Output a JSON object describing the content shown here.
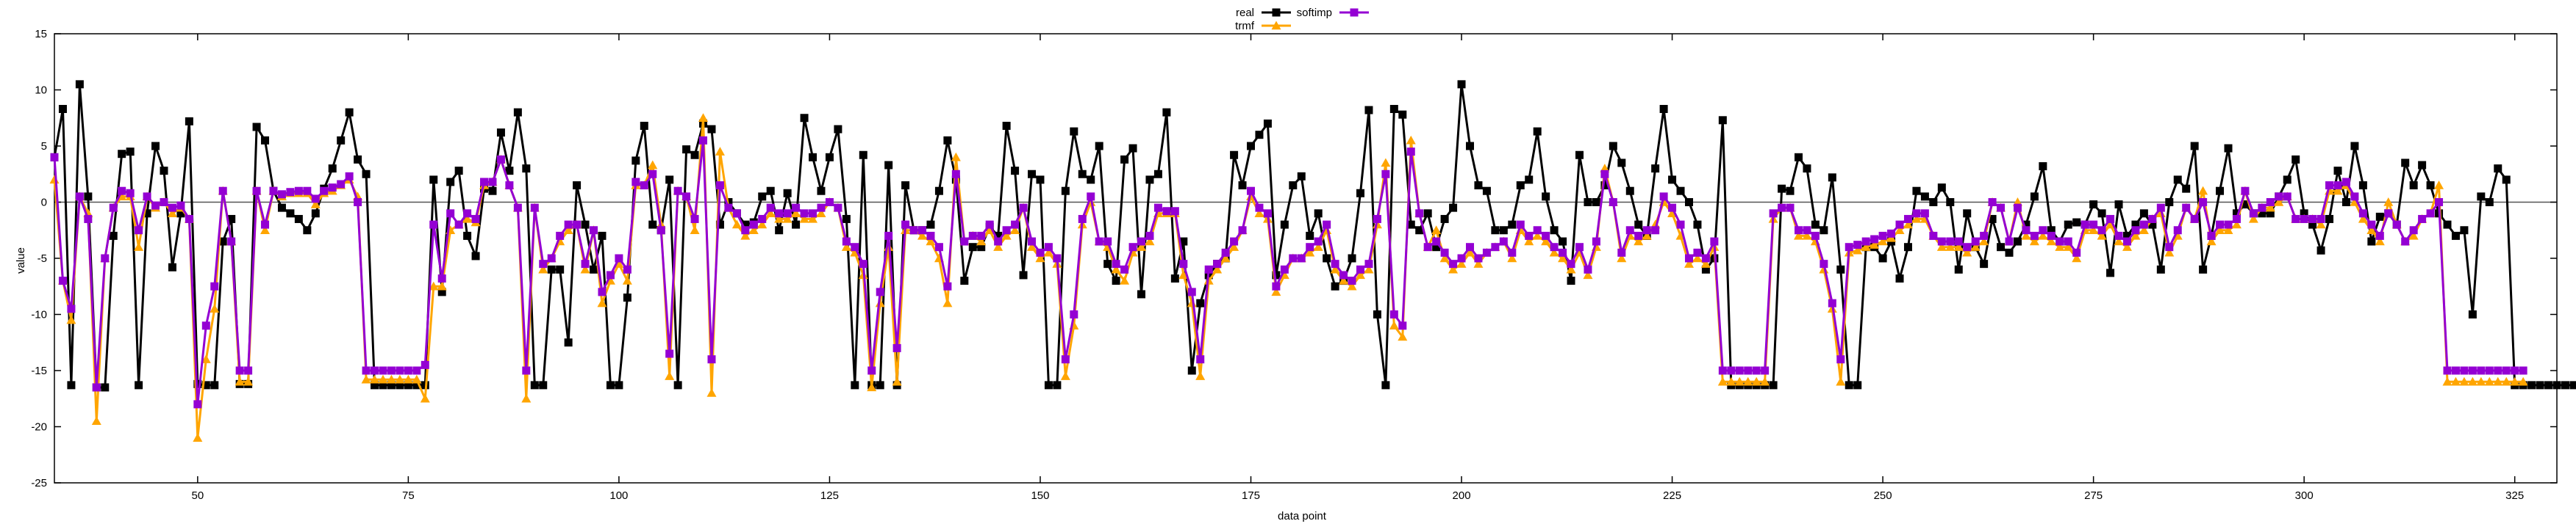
{
  "chart_data": {
    "type": "line",
    "xlabel": "data point",
    "ylabel": "value",
    "xlim": [
      33,
      330
    ],
    "ylim": [
      -25,
      15
    ],
    "xticks": [
      50,
      75,
      100,
      125,
      150,
      175,
      200,
      225,
      250,
      275,
      300,
      325
    ],
    "yticks": [
      -25,
      -20,
      -15,
      -10,
      -5,
      0,
      5,
      10,
      15
    ],
    "grid": false,
    "zero_line": true,
    "legend_position": "top-center",
    "x_start": 33,
    "series": [
      {
        "name": "real",
        "color": "#000000",
        "marker": "square",
        "values": [
          4.0,
          8.3,
          -16.3,
          10.5,
          0.5,
          -16.5,
          -16.5,
          -3.0,
          4.3,
          4.5,
          -16.3,
          -1.0,
          5.0,
          2.8,
          -5.8,
          -1.0,
          7.2,
          -16.2,
          -16.3,
          -16.3,
          -3.5,
          -1.5,
          -16.2,
          -16.2,
          6.7,
          5.5,
          1.0,
          -0.5,
          -1.0,
          -1.5,
          -2.5,
          -1.0,
          1.2,
          3.0,
          5.5,
          8.0,
          3.8,
          2.5,
          -16.3,
          -16.3,
          -16.3,
          -16.3,
          -16.3,
          -16.3,
          -16.3,
          2.0,
          -8.0,
          1.8,
          2.8,
          -3.0,
          -4.8,
          1.2,
          1.0,
          6.2,
          2.8,
          8.0,
          3.0,
          -16.3,
          -16.3,
          -6.0,
          -6.0,
          -12.5,
          1.5,
          -2.0,
          -6.0,
          -3.0,
          -16.3,
          -16.3,
          -8.5,
          3.7,
          6.8,
          -2.0,
          -2.5,
          2.0,
          -16.3,
          4.7,
          4.2,
          7.0,
          6.5,
          -2.0,
          0.0,
          -1.0,
          -2.0,
          -1.8,
          0.5,
          1.0,
          -2.5,
          0.8,
          -2.0,
          7.5,
          4.0,
          1.0,
          4.0,
          6.5,
          -1.5,
          -16.3,
          4.2,
          -16.3,
          -16.3,
          3.3,
          -16.3,
          1.5,
          -2.5,
          -2.5,
          -2.0,
          1.0,
          5.5,
          2.0,
          -7.0,
          -4.0,
          -4.0,
          -2.2,
          -3.0,
          6.8,
          2.8,
          -6.5,
          2.5,
          2.0,
          -16.3,
          -16.3,
          1.0,
          6.3,
          2.5,
          2.0,
          5.0,
          -5.5,
          -7.0,
          3.8,
          4.8,
          -8.2,
          2.0,
          2.5,
          8.0,
          -6.8,
          -3.5,
          -15.0,
          -9.0,
          -6.5,
          -5.5,
          -5.0,
          4.2,
          1.5,
          5.0,
          6.0,
          7.0,
          -6.5,
          -2.0,
          1.5,
          2.3,
          -3.0,
          -1.0,
          -5.0,
          -7.5,
          -7.0,
          -5.0,
          0.8,
          8.2,
          -10.0,
          -16.3,
          8.3,
          7.8,
          -2.0,
          -2.5,
          -1.0,
          -4.0,
          -1.5,
          -0.5,
          10.5,
          5.0,
          1.5,
          1.0,
          -2.5,
          -2.5,
          -2.0,
          1.5,
          2.0,
          6.3,
          0.5,
          -2.5,
          -3.5,
          -7.0,
          4.2,
          0.0,
          0.0,
          1.5,
          5.0,
          3.5,
          1.0,
          -2.0,
          -3.0,
          3.0,
          8.3,
          2.0,
          1.0,
          0.0,
          -2.0,
          -6.0,
          -5.0,
          7.3,
          -16.3,
          -16.3,
          -16.3,
          -16.3,
          -16.3,
          -16.3,
          1.2,
          1.0,
          4.0,
          3.0,
          -2.0,
          -2.5,
          2.2,
          -6.0,
          -16.3,
          -16.3,
          -4.0,
          -4.0,
          -5.0,
          -3.5,
          -6.8,
          -4.0,
          1.0,
          0.5,
          0.0,
          1.3,
          0.0,
          -6.0,
          -1.0,
          -4.0,
          -5.5,
          -1.5,
          -4.0,
          -4.5,
          -3.5,
          -2.0,
          0.5,
          3.2,
          -2.5,
          -3.5,
          -2.0,
          -1.8,
          -2.0,
          -0.2,
          -1.0,
          -6.3,
          -0.2,
          -3.0,
          -2.0,
          -1.0,
          -2.0,
          -6.0,
          0.0,
          2.0,
          1.2,
          5.0,
          -6.0,
          -3.0,
          1.0,
          4.8,
          -1.0,
          -0.2,
          -1.0,
          -1.0,
          -1.0,
          0.5,
          2.0,
          3.8,
          -1.0,
          -2.0,
          -4.3,
          -1.5,
          2.8,
          0.0,
          5.0,
          1.5,
          -3.5,
          -1.3,
          -1.0,
          -2.0,
          3.5,
          1.5,
          3.3,
          1.5,
          -1.0,
          -2.0,
          -3.0,
          -2.5,
          -10.0,
          0.5,
          0.0,
          3.0,
          2.0,
          -16.3,
          -16.3,
          -16.3,
          -16.3,
          -16.3,
          -16.3,
          -16.3,
          -16.3,
          -16.3,
          -16.3
        ]
      },
      {
        "name": "trmf",
        "color": "#ffa500",
        "marker": "triangle",
        "values": [
          2.0,
          -7.0,
          -10.5,
          0.5,
          -1.0,
          -19.5,
          -5.0,
          -0.5,
          0.5,
          0.5,
          -4.0,
          0.5,
          -0.5,
          0.0,
          -1.0,
          -0.5,
          -1.5,
          -21.0,
          -14.0,
          -9.5,
          1.0,
          -3.5,
          -16.0,
          -16.0,
          1.0,
          -2.5,
          1.0,
          0.5,
          0.8,
          0.8,
          0.8,
          -0.2,
          0.8,
          1.0,
          1.5,
          2.0,
          0.5,
          -15.8,
          -15.8,
          -15.8,
          -15.8,
          -15.8,
          -15.8,
          -15.8,
          -17.5,
          -7.5,
          -7.5,
          -2.5,
          -2.0,
          -1.5,
          -1.8,
          1.5,
          1.8,
          3.8,
          1.5,
          -0.5,
          -17.5,
          -0.5,
          -6.0,
          -5.0,
          -3.5,
          -2.5,
          -2.0,
          -6.0,
          -2.5,
          -9.0,
          -7.0,
          -5.5,
          -7.0,
          1.5,
          1.5,
          3.3,
          -2.0,
          -15.5,
          1.0,
          0.5,
          -2.5,
          7.5,
          -17.0,
          4.5,
          -0.5,
          -2.0,
          -3.0,
          -2.5,
          -2.0,
          -1.0,
          -1.5,
          -1.5,
          -1.0,
          -1.5,
          -1.5,
          -1.0,
          0.0,
          -0.5,
          -4.0,
          -4.5,
          -6.5,
          -16.5,
          -9.0,
          -4.0,
          -16.0,
          -2.5,
          -2.5,
          -3.0,
          -3.5,
          -5.0,
          -9.0,
          4.0,
          -3.5,
          -3.0,
          -3.5,
          -2.5,
          -4.0,
          -3.0,
          -2.5,
          -0.5,
          -4.0,
          -5.0,
          -4.5,
          -5.5,
          -15.5,
          -11.0,
          -2.0,
          0.0,
          -3.5,
          -4.0,
          -6.0,
          -7.0,
          -4.5,
          -4.0,
          -3.5,
          -1.0,
          -1.0,
          -1.0,
          -6.5,
          -9.0,
          -15.5,
          -7.0,
          -6.0,
          -5.0,
          -4.0,
          -2.5,
          0.5,
          -1.0,
          -1.5,
          -8.0,
          -6.5,
          -5.0,
          -5.0,
          -4.5,
          -4.0,
          -2.5,
          -6.0,
          -7.0,
          -7.5,
          -6.5,
          -6.0,
          -2.0,
          3.5,
          -11.0,
          -12.0,
          5.5,
          -1.0,
          -4.0,
          -2.5,
          -5.0,
          -6.0,
          -5.5,
          -4.5,
          -5.5,
          -4.5,
          -4.0,
          -3.5,
          -5.0,
          -2.5,
          -3.5,
          -3.0,
          -3.5,
          -4.5,
          -5.0,
          -6.0,
          -4.5,
          -6.5,
          -4.0,
          3.0,
          0.0,
          -5.0,
          -3.0,
          -3.5,
          -3.0,
          -2.0,
          0.0,
          -1.0,
          -3.0,
          -5.5,
          -5.0,
          -5.5,
          -4.0,
          -16.0,
          -16.0,
          -16.0,
          -16.0,
          -16.0,
          -16.0,
          -1.5,
          -0.5,
          -0.5,
          -3.0,
          -3.0,
          -3.5,
          -6.0,
          -9.5,
          -16.0,
          -4.5,
          -4.3,
          -4.0,
          -3.8,
          -3.5,
          -3.2,
          -2.5,
          -2.0,
          -1.5,
          -1.5,
          -3.0,
          -4.0,
          -4.0,
          -4.0,
          -4.5,
          -4.0,
          -3.5,
          0.0,
          -0.5,
          -3.5,
          0.0,
          -3.0,
          -3.5,
          -3.0,
          -3.5,
          -4.0,
          -4.0,
          -5.0,
          -2.5,
          -2.5,
          -3.0,
          -2.0,
          -3.5,
          -4.0,
          -3.0,
          -2.5,
          -1.5,
          -1.0,
          -4.5,
          -3.0,
          -0.5,
          -1.5,
          1.0,
          -3.5,
          -2.5,
          -2.5,
          -2.0,
          1.0,
          -1.5,
          -0.5,
          -0.5,
          0.0,
          0.5,
          -1.5,
          -1.5,
          -1.5,
          -2.0,
          1.0,
          1.0,
          1.5,
          0.0,
          -1.5,
          -2.5,
          -3.5,
          0.0,
          -2.0,
          -3.5,
          -3.0,
          -1.5,
          -1.0,
          1.5,
          -16.0,
          -16.0,
          -16.0,
          -16.0,
          -16.0,
          -16.0,
          -16.0,
          -16.0,
          -16.0,
          -16.0
        ]
      },
      {
        "name": "softimp",
        "color": "#9400d3",
        "marker": "square",
        "values": [
          4.0,
          -7.0,
          -9.5,
          0.5,
          -1.5,
          -16.5,
          -5.0,
          -0.5,
          1.0,
          0.8,
          -2.5,
          0.5,
          -0.3,
          0.0,
          -0.5,
          -0.3,
          -1.5,
          -18.0,
          -11.0,
          -7.5,
          1.0,
          -3.5,
          -15.0,
          -15.0,
          1.0,
          -2.0,
          1.0,
          0.7,
          0.9,
          1.0,
          1.0,
          0.3,
          1.0,
          1.3,
          1.6,
          2.3,
          0.0,
          -15.0,
          -15.0,
          -15.0,
          -15.0,
          -15.0,
          -15.0,
          -15.0,
          -14.5,
          -2.0,
          -6.8,
          -1.0,
          -2.0,
          -1.0,
          -1.5,
          1.8,
          1.8,
          3.8,
          1.5,
          -0.5,
          -15.0,
          -0.5,
          -5.5,
          -5.0,
          -3.0,
          -2.0,
          -2.0,
          -5.5,
          -2.5,
          -8.0,
          -6.5,
          -5.0,
          -6.0,
          1.8,
          1.5,
          2.5,
          -2.5,
          -13.5,
          1.0,
          0.5,
          -1.5,
          5.5,
          -14.0,
          1.5,
          -0.5,
          -1.0,
          -2.5,
          -2.0,
          -1.5,
          -0.5,
          -1.0,
          -1.0,
          -0.5,
          -1.0,
          -1.0,
          -0.5,
          0.0,
          -0.5,
          -3.5,
          -4.0,
          -5.5,
          -15.0,
          -8.0,
          -3.0,
          -13.0,
          -2.0,
          -2.5,
          -2.5,
          -3.0,
          -4.0,
          -7.5,
          2.5,
          -3.5,
          -3.0,
          -3.0,
          -2.0,
          -3.5,
          -2.5,
          -2.0,
          -0.5,
          -3.5,
          -4.5,
          -4.0,
          -5.0,
          -14.0,
          -10.0,
          -1.5,
          0.5,
          -3.5,
          -3.5,
          -5.5,
          -6.0,
          -4.0,
          -3.5,
          -3.0,
          -0.5,
          -0.8,
          -0.8,
          -5.5,
          -8.0,
          -14.0,
          -6.0,
          -5.5,
          -4.5,
          -3.5,
          -2.5,
          1.0,
          -0.5,
          -1.0,
          -7.5,
          -6.0,
          -5.0,
          -5.0,
          -4.0,
          -3.5,
          -2.0,
          -5.5,
          -6.5,
          -7.0,
          -6.0,
          -5.5,
          -1.5,
          2.5,
          -10.0,
          -11.0,
          4.5,
          -1.0,
          -4.0,
          -3.5,
          -4.5,
          -5.5,
          -5.0,
          -4.0,
          -5.0,
          -4.5,
          -4.0,
          -3.5,
          -4.5,
          -2.0,
          -3.0,
          -2.5,
          -3.0,
          -4.0,
          -4.5,
          -5.5,
          -4.0,
          -6.0,
          -3.5,
          2.5,
          0.0,
          -4.5,
          -2.5,
          -3.0,
          -2.5,
          -2.5,
          0.5,
          -0.5,
          -2.0,
          -5.0,
          -4.5,
          -5.0,
          -3.5,
          -15.0,
          -15.0,
          -15.0,
          -15.0,
          -15.0,
          -15.0,
          -1.0,
          -0.5,
          -0.5,
          -2.5,
          -2.5,
          -3.0,
          -5.5,
          -9.0,
          -14.0,
          -4.0,
          -3.8,
          -3.5,
          -3.3,
          -3.0,
          -2.8,
          -2.0,
          -1.5,
          -1.0,
          -1.0,
          -3.0,
          -3.5,
          -3.5,
          -3.5,
          -4.0,
          -3.5,
          -3.0,
          0.0,
          -0.5,
          -3.5,
          -0.5,
          -2.5,
          -3.0,
          -2.5,
          -3.0,
          -3.5,
          -3.5,
          -4.5,
          -2.0,
          -2.0,
          -2.5,
          -1.5,
          -3.0,
          -3.5,
          -2.5,
          -2.0,
          -1.5,
          -0.5,
          -4.0,
          -2.5,
          -0.5,
          -1.5,
          0.0,
          -3.0,
          -2.0,
          -2.0,
          -1.5,
          1.0,
          -1.0,
          -0.5,
          0.0,
          0.5,
          0.5,
          -1.5,
          -1.5,
          -1.5,
          -1.5,
          1.5,
          1.5,
          1.8,
          0.5,
          -1.0,
          -2.0,
          -3.0,
          -1.0,
          -2.0,
          -3.5,
          -2.5,
          -1.5,
          -1.0,
          0.0,
          -15.0,
          -15.0,
          -15.0,
          -15.0,
          -15.0,
          -15.0,
          -15.0,
          -15.0,
          -15.0,
          -15.0
        ]
      }
    ]
  }
}
